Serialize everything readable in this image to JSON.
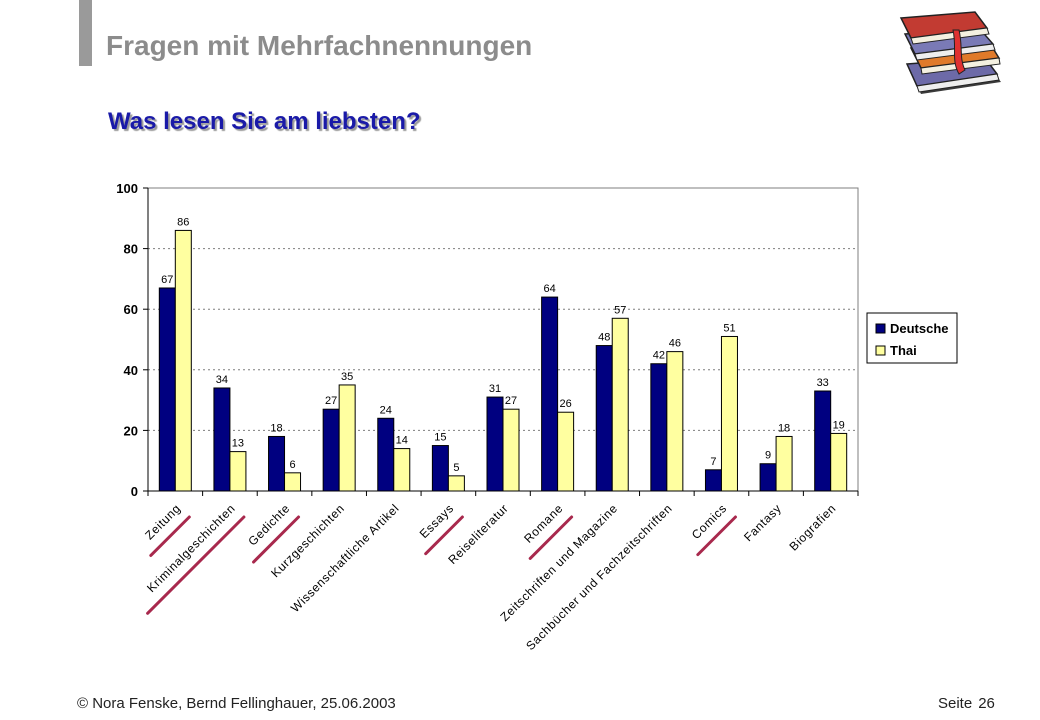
{
  "slide": {
    "title": "Fragen mit Mehrfachnennungen",
    "subtitle": "Was lesen Sie am liebsten?",
    "footer_left": "© Nora Fenske, Bernd Fellinghauer, 25.06.2003",
    "page_label": "Seite",
    "page_number": "26",
    "illustration_icon": "stack-of-books-icon"
  },
  "chart_data": {
    "type": "bar",
    "categories": [
      "Zeitung",
      "Kriminalgeschichten",
      "Gedichte",
      "Kurzgeschichten",
      "Wissenschaftliche Artikel",
      "Essays",
      "Reiseliteratur",
      "Romane",
      "Zeitschriften und Magazine",
      "Sachbücher und Fachzeitschriften",
      "Comics",
      "Fantasy",
      "Biografien"
    ],
    "series": [
      {
        "name": "Deutsche",
        "values": [
          67,
          34,
          18,
          27,
          24,
          15,
          31,
          64,
          48,
          42,
          7,
          9,
          33
        ],
        "color": "#000080"
      },
      {
        "name": "Thai",
        "values": [
          86,
          13,
          6,
          35,
          14,
          5,
          27,
          26,
          57,
          46,
          51,
          18,
          19
        ],
        "color": "#ffffa0"
      }
    ],
    "yticks": [
      0,
      20,
      40,
      60,
      80,
      100
    ],
    "ylim": [
      0,
      100
    ],
    "grid": "horizontal dashed",
    "legend": "right",
    "underlined_categories": [
      "Zeitung",
      "Kriminalgeschichten",
      "Gedichte",
      "Essays",
      "Romane",
      "Comics"
    ],
    "underline_color": "#a8294d"
  }
}
